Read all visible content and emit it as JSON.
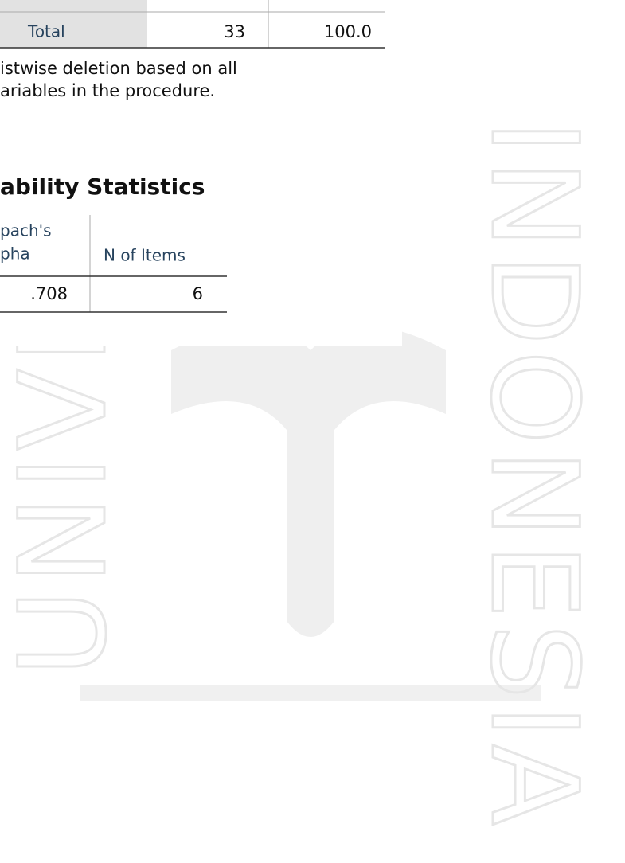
{
  "case_table": {
    "row_label": "Total",
    "n": "33",
    "percent": "100.0",
    "footnote": [
      "istwise deletion based on all",
      "ariables in the procedure."
    ]
  },
  "reliability": {
    "title": "ability Statistics",
    "headers": [
      [
        "pach's",
        "pha"
      ],
      "N of Items"
    ],
    "row": [
      ".708",
      "6"
    ]
  },
  "watermark": {
    "left": "UNIVER",
    "right": "INDONESIA"
  }
}
